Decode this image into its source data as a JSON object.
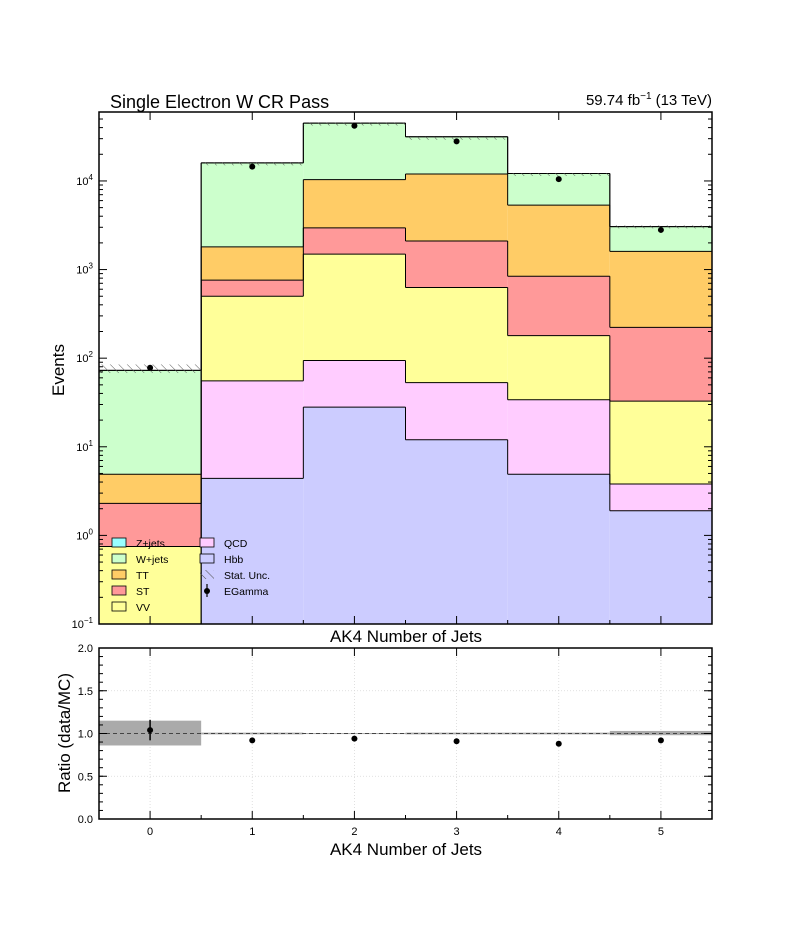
{
  "chart_data": [
    {
      "type": "bar",
      "title": "Single Electron W CR Pass",
      "luminosity_label": {
        "value": "59.74 fb",
        "sup": "−1",
        "energy": "(13 TeV)"
      },
      "xlabel": "AK4 Number of Jets",
      "ylabel": "Events",
      "log_scale": true,
      "ylim": [
        0.1,
        60000
      ],
      "categories": [
        "0",
        "1",
        "2",
        "3",
        "4",
        "5"
      ],
      "y_ticks": [
        {
          "value": 0.1,
          "base": "10",
          "exp": "−1"
        },
        {
          "value": 1,
          "base": "10",
          "exp": "0"
        },
        {
          "value": 10,
          "base": "10",
          "exp": "1"
        },
        {
          "value": 100,
          "base": "10",
          "exp": "2"
        },
        {
          "value": 1000,
          "base": "10",
          "exp": "3"
        },
        {
          "value": 10000,
          "base": "10",
          "exp": "4"
        }
      ],
      "stacked": true,
      "stack_order_bottom_to_top": [
        "Hbb",
        "QCD",
        "VV",
        "ST",
        "TT",
        "W+jets",
        "Z+jets"
      ],
      "series": [
        {
          "name": "Hbb",
          "color": "#ccccff",
          "values": [
            0,
            4.4,
            28,
            12,
            4.9,
            1.9
          ]
        },
        {
          "name": "QCD",
          "color": "#ffccff",
          "values": [
            0,
            51,
            66,
            41,
            29,
            1.9
          ]
        },
        {
          "name": "VV",
          "color": "#ffff99",
          "values": [
            0.75,
            445,
            1400,
            575,
            146,
            29
          ]
        },
        {
          "name": "ST",
          "color": "#ff9999",
          "values": [
            1.55,
            260,
            1460,
            1470,
            660,
            190
          ]
        },
        {
          "name": "TT",
          "color": "#ffcc66",
          "values": [
            2.6,
            1040,
            7400,
            9900,
            4500,
            1380
          ]
        },
        {
          "name": "W+jets",
          "color": "#ccffcc",
          "values": [
            68,
            14200,
            34600,
            19500,
            6800,
            1450
          ]
        },
        {
          "name": "Z+jets",
          "color": "#99ffff",
          "values": [
            0,
            0,
            0,
            0,
            0,
            0
          ]
        }
      ],
      "stat_unc_band": [
        {
          "category": "0",
          "low": 68,
          "high": 85
        },
        {
          "category": "1",
          "low": 16000,
          "high": 16200
        },
        {
          "category": "2",
          "low": 45000,
          "high": 45600
        },
        {
          "category": "3",
          "low": 31000,
          "high": 31500
        },
        {
          "category": "4",
          "low": 12000,
          "high": 12300
        },
        {
          "category": "5",
          "low": 3000,
          "high": 3150
        }
      ],
      "data_points": {
        "name": "EGamma",
        "values": [
          78,
          14500,
          42000,
          28000,
          10500,
          2800
        ]
      },
      "legend": {
        "placement": "bottom-left",
        "entries": [
          {
            "label": "Z+jets",
            "kind": "fill",
            "color": "#99ffff"
          },
          {
            "label": "W+jets",
            "kind": "fill",
            "color": "#ccffcc"
          },
          {
            "label": "TT",
            "kind": "fill",
            "color": "#ffcc66"
          },
          {
            "label": "ST",
            "kind": "fill",
            "color": "#ff9999"
          },
          {
            "label": "VV",
            "kind": "fill",
            "color": "#ffff99"
          },
          {
            "label": "QCD",
            "kind": "fill",
            "color": "#ffccff"
          },
          {
            "label": "Hbb",
            "kind": "fill",
            "color": "#ccccff"
          },
          {
            "label": "Stat. Unc.",
            "kind": "hatch",
            "color": "#555555"
          },
          {
            "label": "EGamma",
            "kind": "marker",
            "color": "#000000"
          }
        ]
      }
    },
    {
      "type": "scatter",
      "xlabel": "AK4 Number of Jets",
      "ylabel": "Ratio (data/MC)",
      "ylim": [
        0,
        2
      ],
      "y_ticks": [
        "0.0",
        "0.5",
        "1.0",
        "1.5",
        "2.0"
      ],
      "categories": [
        "0",
        "1",
        "2",
        "3",
        "4",
        "5"
      ],
      "x_ticks": [
        "0",
        "1",
        "2",
        "3",
        "4",
        "5"
      ],
      "reference_line": 1.0,
      "grid": true,
      "ratio_values": [
        1.04,
        0.92,
        0.94,
        0.91,
        0.88,
        0.92
      ],
      "ratio_errors": [
        0.12,
        0,
        0,
        0,
        0,
        0
      ],
      "unc_band": [
        {
          "category": "0",
          "low": 0.86,
          "high": 1.15
        },
        {
          "category": "1",
          "low": 0.99,
          "high": 1.01
        },
        {
          "category": "2",
          "low": 0.995,
          "high": 1.005
        },
        {
          "category": "3",
          "low": 0.99,
          "high": 1.01
        },
        {
          "category": "4",
          "low": 0.99,
          "high": 1.01
        },
        {
          "category": "5",
          "low": 0.98,
          "high": 1.03
        }
      ],
      "band_color": "#aaaaaa"
    }
  ]
}
